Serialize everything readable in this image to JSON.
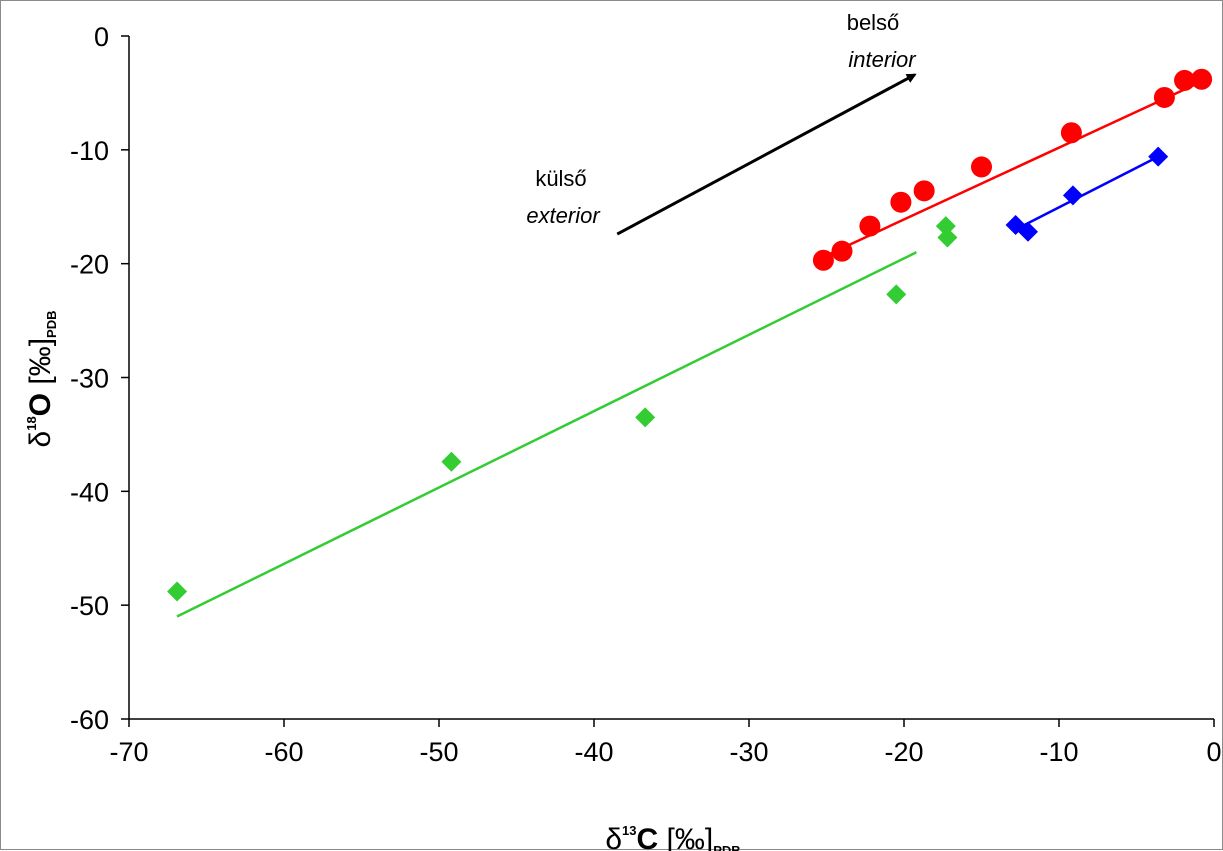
{
  "chart_data": {
    "type": "scatter",
    "xlim": [
      -70,
      0
    ],
    "ylim": [
      -60,
      0
    ],
    "x_ticks": [
      -70,
      -60,
      -50,
      -40,
      -30,
      -20,
      -10,
      0
    ],
    "y_ticks": [
      0,
      -10,
      -20,
      -30,
      -40,
      -50,
      -60
    ],
    "grid": false,
    "xlabel": {
      "delta": "δ",
      "sup": "13",
      "element": "C",
      "unit": "[‰]",
      "sub": "PDB"
    },
    "ylabel": {
      "delta": "δ",
      "sup": "18",
      "element": "O",
      "unit": "[‰]",
      "sub": "PDB"
    },
    "series": [
      {
        "marker": "circle",
        "color": "#ff0000",
        "x": [
          -25.2,
          -24.0,
          -22.2,
          -20.2,
          -18.7,
          -15.0,
          -9.2,
          -3.2,
          -1.9,
          -0.8
        ],
        "y": [
          -19.7,
          -18.9,
          -16.7,
          -14.6,
          -13.6,
          -11.5,
          -8.5,
          -5.4,
          -3.9,
          -3.8
        ],
        "trendline": {
          "x": [
            -25.2,
            -0.8
          ],
          "y": [
            -19.4,
            -4.0
          ]
        }
      },
      {
        "marker": "diamond",
        "color": "#0000ff",
        "x": [
          -12.8,
          -12.0,
          -9.1,
          -3.6
        ],
        "y": [
          -16.6,
          -17.2,
          -14.0,
          -10.6
        ],
        "trendline": {
          "x": [
            -12.8,
            -3.6
          ],
          "y": [
            -17.0,
            -10.6
          ]
        }
      },
      {
        "marker": "diamond",
        "color": "#33cc33",
        "x": [
          -66.9,
          -49.2,
          -36.7,
          -20.5,
          -17.3,
          -17.2
        ],
        "y": [
          -48.8,
          -37.4,
          -33.5,
          -22.7,
          -16.7,
          -17.7
        ],
        "trendline": {
          "x": [
            -66.9,
            -19.2
          ],
          "y": [
            -51.0,
            -19.0
          ]
        }
      }
    ],
    "annotations": [
      {
        "line1": "belső",
        "line2": "interior"
      },
      {
        "line1": "külső",
        "line2": "exterior"
      }
    ],
    "arrow": {
      "from": {
        "x": -38.5,
        "y": -17.4
      },
      "to": {
        "x": -19.3,
        "y": -3.4
      },
      "color": "#000000"
    }
  }
}
